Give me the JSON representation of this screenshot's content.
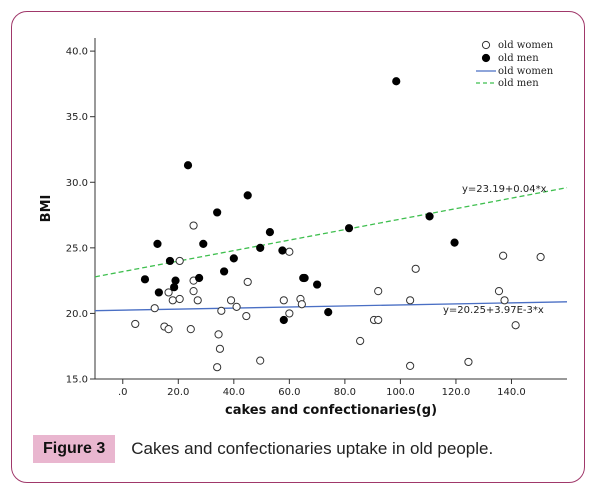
{
  "figure": {
    "label": "Figure 3",
    "caption": "Cakes and confectionaries uptake in old people."
  },
  "colors": {
    "frame": "#a0386a",
    "label_bg": "#e9b6cf",
    "women_fit": "#4a6fc4",
    "men_fit": "#3fbf4f"
  },
  "chart_data": {
    "type": "scatter",
    "xlabel": "cakes and confectionaries(g)",
    "ylabel": "BMI",
    "xlim": [
      -10,
      160
    ],
    "ylim": [
      15,
      41
    ],
    "xticks": [
      0,
      20,
      40,
      60,
      80,
      100,
      120,
      140
    ],
    "xtick_labels": [
      ".0",
      "20.0",
      "40.0",
      "60.0",
      "80.0",
      "100.0",
      "120.0",
      "140.0"
    ],
    "yticks": [
      15,
      20,
      25,
      30,
      35,
      40
    ],
    "ytick_labels": [
      "15.0",
      "20.0",
      "25.0",
      "30.0",
      "35.0",
      "40.0"
    ],
    "grid": false,
    "legend_position": "top-right",
    "legend": [
      "old women",
      "old men",
      "old women",
      "old men"
    ],
    "series": [
      {
        "name": "old women",
        "marker": "open-circle",
        "x": [
          4.5,
          11.5,
          15,
          16.5,
          16.5,
          18,
          20.5,
          20.5,
          24.5,
          25.5,
          25.5,
          25.5,
          27,
          34,
          34.5,
          35,
          35.5,
          39,
          41,
          44.5,
          45,
          49.5,
          58,
          60,
          60,
          64,
          64.5,
          85.5,
          90.5,
          92,
          92,
          103.5,
          103.5,
          105.5,
          124.5,
          135.5,
          137,
          137.5,
          141.5,
          150.5
        ],
        "y": [
          19.2,
          20.4,
          19.0,
          18.8,
          21.6,
          21.0,
          24.0,
          21.1,
          18.8,
          21.7,
          22.5,
          26.7,
          21.0,
          15.9,
          18.4,
          17.3,
          20.2,
          21.0,
          20.5,
          19.8,
          22.4,
          16.4,
          21.0,
          20.0,
          24.7,
          21.1,
          20.7,
          17.9,
          19.5,
          19.5,
          21.7,
          16.0,
          21.0,
          23.4,
          16.3,
          21.7,
          24.4,
          21.0,
          19.1,
          24.3
        ]
      },
      {
        "name": "old men",
        "marker": "filled-circle",
        "x": [
          8,
          12.5,
          13,
          17,
          18.5,
          19,
          23.5,
          27.5,
          29,
          34,
          36.5,
          40,
          45,
          49.5,
          53,
          57.5,
          58,
          65,
          65.5,
          70,
          74,
          81.5,
          98.5,
          110.5,
          119.5
        ],
        "y": [
          22.6,
          25.3,
          21.6,
          24.0,
          22.0,
          22.5,
          31.3,
          22.7,
          25.3,
          27.7,
          23.2,
          24.2,
          29.0,
          25.0,
          26.2,
          24.8,
          19.5,
          22.7,
          22.7,
          22.2,
          20.1,
          26.5,
          37.7,
          27.4,
          25.4
        ]
      }
    ],
    "fit_lines": [
      {
        "name": "old women",
        "intercept": 20.25,
        "slope": 0.00397,
        "equation": "y=20.25+3.97E-3*x",
        "style": "solid"
      },
      {
        "name": "old men",
        "intercept": 23.19,
        "slope": 0.04,
        "equation": "y=23.19+0.04*x",
        "style": "dashed"
      }
    ]
  }
}
